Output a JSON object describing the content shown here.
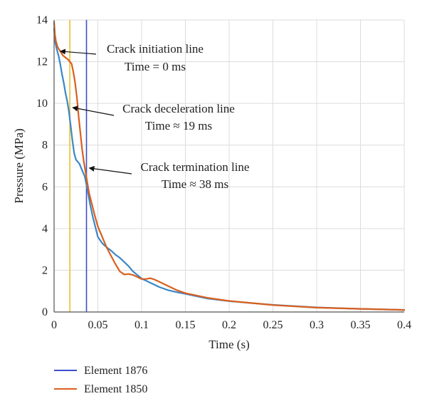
{
  "chart_data": {
    "type": "line",
    "xlabel": "Time (s)",
    "ylabel": "Pressure (MPa)",
    "xlim": [
      0,
      0.4
    ],
    "ylim": [
      0,
      14
    ],
    "xticks": [
      0,
      0.05,
      0.1,
      0.15,
      0.2,
      0.25,
      0.3,
      0.35,
      0.4
    ],
    "xtick_labels": [
      "0",
      "0.05",
      "0.1",
      "0.15",
      "0.2",
      "0.25",
      "0.3",
      "0.35",
      "0.4"
    ],
    "yticks": [
      0,
      2,
      4,
      6,
      8,
      10,
      12,
      14
    ],
    "ytick_labels": [
      "0",
      "2",
      "4",
      "6",
      "8",
      "10",
      "12",
      "14"
    ],
    "grid": true,
    "legend_placement": "bottom-left-below",
    "series": [
      {
        "name": "Element 1876",
        "color": "#3b87c8",
        "x": [
          0,
          0.001,
          0.003,
          0.005,
          0.007,
          0.009,
          0.011,
          0.013,
          0.015,
          0.017,
          0.019,
          0.021,
          0.023,
          0.025,
          0.027,
          0.029,
          0.031,
          0.033,
          0.035,
          0.038,
          0.041,
          0.044,
          0.047,
          0.05,
          0.055,
          0.06,
          0.065,
          0.07,
          0.075,
          0.08,
          0.085,
          0.09,
          0.1,
          0.11,
          0.12,
          0.13,
          0.14,
          0.15,
          0.175,
          0.2,
          0.25,
          0.3,
          0.35,
          0.4
        ],
        "y": [
          13.6,
          13.0,
          12.6,
          12.3,
          11.9,
          11.4,
          11.0,
          10.5,
          10.1,
          9.6,
          8.9,
          8.2,
          7.6,
          7.3,
          7.2,
          7.1,
          6.9,
          6.7,
          6.5,
          5.9,
          5.2,
          4.6,
          4.1,
          3.6,
          3.3,
          3.1,
          2.95,
          2.75,
          2.6,
          2.4,
          2.2,
          1.95,
          1.6,
          1.4,
          1.2,
          1.05,
          0.95,
          0.87,
          0.65,
          0.52,
          0.34,
          0.22,
          0.15,
          0.1
        ]
      },
      {
        "name": "Element 1850",
        "color": "#d95f1e",
        "x": [
          0,
          0.001,
          0.002,
          0.004,
          0.007,
          0.01,
          0.013,
          0.016,
          0.018,
          0.02,
          0.022,
          0.024,
          0.026,
          0.028,
          0.03,
          0.032,
          0.034,
          0.036,
          0.038,
          0.04,
          0.043,
          0.046,
          0.05,
          0.055,
          0.06,
          0.065,
          0.07,
          0.075,
          0.08,
          0.085,
          0.09,
          0.095,
          0.1,
          0.105,
          0.11,
          0.115,
          0.12,
          0.13,
          0.14,
          0.15,
          0.175,
          0.2,
          0.25,
          0.3,
          0.35,
          0.4
        ],
        "y": [
          13.9,
          13.3,
          13.0,
          12.7,
          12.5,
          12.3,
          12.2,
          12.1,
          12.0,
          11.9,
          11.5,
          11.0,
          10.3,
          9.4,
          8.6,
          7.8,
          7.2,
          6.7,
          6.2,
          5.7,
          5.2,
          4.7,
          4.1,
          3.6,
          3.1,
          2.7,
          2.3,
          1.95,
          1.8,
          1.82,
          1.78,
          1.68,
          1.58,
          1.58,
          1.62,
          1.55,
          1.45,
          1.25,
          1.05,
          0.9,
          0.68,
          0.53,
          0.33,
          0.21,
          0.15,
          0.1
        ]
      }
    ],
    "vertical_lines": [
      {
        "x": 0.018,
        "color": "#e8c02a"
      },
      {
        "x": 0.037,
        "color": "#3b4fc8"
      }
    ],
    "annotations": [
      {
        "lines": [
          "Crack initiation line",
          "Time = 0 ms"
        ],
        "arrow_to": {
          "x": 0.004,
          "y": 12.5
        }
      },
      {
        "lines": [
          "Crack deceleration line",
          "Time ≈ 19 ms"
        ],
        "arrow_to": {
          "x": 0.018,
          "y": 9.8
        }
      },
      {
        "lines": [
          "Crack termination line",
          "Time ≈ 38 ms"
        ],
        "arrow_to": {
          "x": 0.037,
          "y": 6.9
        }
      }
    ],
    "legend": [
      {
        "label": "Element 1876",
        "color": "#3b4fc8"
      },
      {
        "label": "Element 1850",
        "color": "#d95f1e"
      }
    ]
  }
}
